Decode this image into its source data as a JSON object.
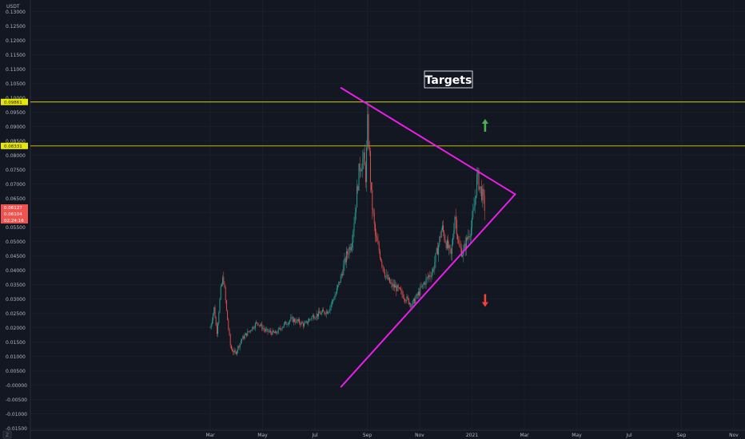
{
  "colors": {
    "background": "#131722",
    "grid": "#1e222d",
    "axis_text": "#b2b5be",
    "up_candle": "#26a69a",
    "down_candle": "#ef5350",
    "trendline": "#e91ee9",
    "level_line": "#d4d400",
    "level_tag_bg": "#e8e800",
    "price_tag_bg": "#ef5350",
    "arrow_up": "#4caf50",
    "arrow_down": "#f44336",
    "annotation_border": "#d1d4dc",
    "annotation_text": "#ffffff"
  },
  "chart_data": {
    "type": "candlestick",
    "currency_label": "USDT",
    "annotation": "Targets",
    "x_ticks": [
      "Mar",
      "May",
      "Jul",
      "Sep",
      "Nov",
      "2021",
      "Mar",
      "May",
      "Jul",
      "Sep",
      "Nov"
    ],
    "y_ticks": [
      "0.13000",
      "0.12500",
      "0.12000",
      "0.11500",
      "0.11000",
      "0.10500",
      "0.10000",
      "0.09500",
      "0.09000",
      "0.08500",
      "0.08000",
      "0.07500",
      "0.07000",
      "0.06500",
      "0.06000",
      "0.05500",
      "0.05000",
      "0.04500",
      "0.04000",
      "0.03500",
      "0.03000",
      "0.02500",
      "0.02000",
      "0.01500",
      "0.01000",
      "0.00500",
      "-0.00000",
      "-0.00500",
      "-0.01000",
      "-0.01500"
    ],
    "ylim": [
      -0.0175,
      0.1325
    ],
    "horizontal_levels": [
      {
        "value": 0.09861,
        "label": "0.09861"
      },
      {
        "value": 0.08331,
        "label": "0.08331"
      }
    ],
    "price_tags": {
      "last_price": "0.06127",
      "prev_price": "0.06104",
      "countdown": "02:24:16"
    },
    "price_path": [
      {
        "m": 0.0,
        "v": 0.02
      },
      {
        "m": 0.15,
        "v": 0.027
      },
      {
        "m": 0.25,
        "v": 0.018
      },
      {
        "m": 0.4,
        "v": 0.033
      },
      {
        "m": 0.5,
        "v": 0.038
      },
      {
        "m": 0.62,
        "v": 0.026
      },
      {
        "m": 0.78,
        "v": 0.013
      },
      {
        "m": 0.95,
        "v": 0.011
      },
      {
        "m": 1.2,
        "v": 0.016
      },
      {
        "m": 1.5,
        "v": 0.019
      },
      {
        "m": 1.8,
        "v": 0.022
      },
      {
        "m": 2.1,
        "v": 0.019
      },
      {
        "m": 2.5,
        "v": 0.018
      },
      {
        "m": 2.8,
        "v": 0.021
      },
      {
        "m": 3.1,
        "v": 0.023
      },
      {
        "m": 3.4,
        "v": 0.022
      },
      {
        "m": 3.6,
        "v": 0.021
      },
      {
        "m": 3.9,
        "v": 0.024
      },
      {
        "m": 4.2,
        "v": 0.025
      },
      {
        "m": 4.5,
        "v": 0.026
      },
      {
        "m": 4.8,
        "v": 0.032
      },
      {
        "m": 5.0,
        "v": 0.038
      },
      {
        "m": 5.2,
        "v": 0.045
      },
      {
        "m": 5.4,
        "v": 0.05
      },
      {
        "m": 5.55,
        "v": 0.062
      },
      {
        "m": 5.7,
        "v": 0.076
      },
      {
        "m": 5.85,
        "v": 0.079
      },
      {
        "m": 5.95,
        "v": 0.072
      },
      {
        "m": 6.0,
        "v": 0.092
      },
      {
        "m": 6.06,
        "v": 0.084
      },
      {
        "m": 6.15,
        "v": 0.066
      },
      {
        "m": 6.3,
        "v": 0.052
      },
      {
        "m": 6.5,
        "v": 0.045
      },
      {
        "m": 6.7,
        "v": 0.038
      },
      {
        "m": 6.9,
        "v": 0.035
      },
      {
        "m": 7.1,
        "v": 0.034
      },
      {
        "m": 7.3,
        "v": 0.032
      },
      {
        "m": 7.5,
        "v": 0.03
      },
      {
        "m": 7.7,
        "v": 0.028
      },
      {
        "m": 7.9,
        "v": 0.031
      },
      {
        "m": 8.2,
        "v": 0.036
      },
      {
        "m": 8.5,
        "v": 0.04
      },
      {
        "m": 8.7,
        "v": 0.048
      },
      {
        "m": 8.85,
        "v": 0.055
      },
      {
        "m": 9.0,
        "v": 0.05
      },
      {
        "m": 9.2,
        "v": 0.045
      },
      {
        "m": 9.35,
        "v": 0.06
      },
      {
        "m": 9.5,
        "v": 0.048
      },
      {
        "m": 9.65,
        "v": 0.046
      },
      {
        "m": 9.85,
        "v": 0.052
      },
      {
        "m": 10.0,
        "v": 0.056
      },
      {
        "m": 10.1,
        "v": 0.064
      },
      {
        "m": 10.2,
        "v": 0.073
      },
      {
        "m": 10.3,
        "v": 0.069
      },
      {
        "m": 10.4,
        "v": 0.066
      },
      {
        "m": 10.5,
        "v": 0.061
      }
    ],
    "trendlines": [
      {
        "from": {
          "m": 5.0,
          "v": 0.1035
        },
        "to": {
          "m": 11.65,
          "v": 0.0665
        }
      },
      {
        "from": {
          "m": 5.0,
          "v": -0.0005
        },
        "to": {
          "m": 11.65,
          "v": 0.0665
        }
      }
    ],
    "arrows": [
      {
        "direction": "up",
        "m": 10.5,
        "v": 0.0905
      },
      {
        "direction": "down",
        "m": 10.5,
        "v": 0.0295
      }
    ]
  }
}
